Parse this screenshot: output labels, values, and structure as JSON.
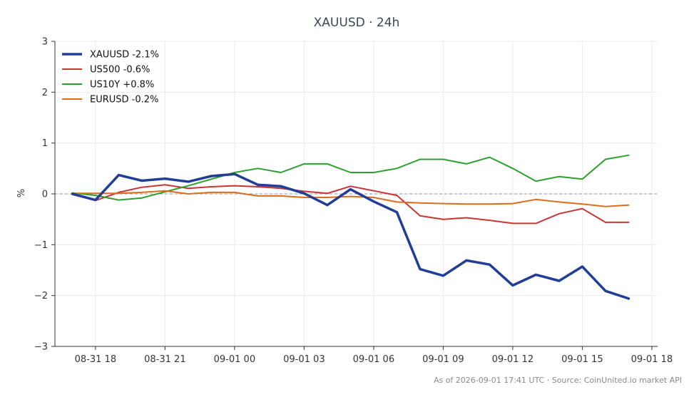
{
  "chart_data": {
    "type": "line",
    "title": "XAUUSD · 24h",
    "ylabel": "%",
    "xlabel": "",
    "ylim": [
      -3,
      3
    ],
    "xlim_hours": [
      16.25,
      42.25
    ],
    "x_ticks": [
      {
        "hour": 18,
        "label": "08-31 18"
      },
      {
        "hour": 21,
        "label": "08-31 21"
      },
      {
        "hour": 24,
        "label": "09-01 00"
      },
      {
        "hour": 27,
        "label": "09-01 03"
      },
      {
        "hour": 30,
        "label": "09-01 06"
      },
      {
        "hour": 33,
        "label": "09-01 09"
      },
      {
        "hour": 36,
        "label": "09-01 12"
      },
      {
        "hour": 39,
        "label": "09-01 15"
      },
      {
        "hour": 42,
        "label": "09-01 18"
      }
    ],
    "y_ticks": [
      {
        "value": 3,
        "label": "3"
      },
      {
        "value": 2,
        "label": "2"
      },
      {
        "value": 1,
        "label": "1"
      },
      {
        "value": 0,
        "label": "0"
      },
      {
        "value": -1,
        "label": "−1"
      },
      {
        "value": -2,
        "label": "−2"
      },
      {
        "value": -3,
        "label": "−3"
      }
    ],
    "grid": true,
    "zero_line": true,
    "legend_position": "top-left",
    "x": [
      17,
      18,
      19,
      20,
      21,
      22,
      23,
      24,
      25,
      26,
      27,
      28,
      29,
      30,
      31,
      32,
      33,
      34,
      35,
      36,
      37,
      38,
      39,
      40,
      41
    ],
    "series": [
      {
        "name": "XAUUSD -2.1%",
        "color": "#1f3d99",
        "width": 3.5,
        "values": [
          0.0,
          -0.12,
          0.37,
          0.26,
          0.3,
          0.24,
          0.35,
          0.39,
          0.18,
          0.15,
          0.01,
          -0.22,
          0.09,
          -0.15,
          -0.36,
          -1.48,
          -1.61,
          -1.31,
          -1.39,
          -1.8,
          -1.59,
          -1.71,
          -1.43,
          -1.91,
          -2.06
        ]
      },
      {
        "name": "US500 -0.6%",
        "color": "#cc3333",
        "width": 2,
        "values": [
          0.01,
          -0.13,
          0.03,
          0.13,
          0.18,
          0.11,
          0.14,
          0.16,
          0.14,
          0.11,
          0.05,
          0.01,
          0.15,
          0.06,
          -0.03,
          -0.43,
          -0.5,
          -0.47,
          -0.52,
          -0.58,
          -0.58,
          -0.39,
          -0.29,
          -0.56,
          -0.56
        ]
      },
      {
        "name": "US10Y +0.8%",
        "color": "#2ca02c",
        "width": 2,
        "values": [
          0.02,
          -0.03,
          -0.12,
          -0.08,
          0.04,
          0.16,
          0.29,
          0.42,
          0.5,
          0.42,
          0.59,
          0.59,
          0.42,
          0.42,
          0.5,
          0.68,
          0.68,
          0.59,
          0.72,
          0.5,
          0.25,
          0.34,
          0.29,
          0.68,
          0.76
        ]
      },
      {
        "name": "EURUSD -0.2%",
        "color": "#e06c1a",
        "width": 2,
        "values": [
          0.01,
          0.01,
          0.01,
          0.03,
          0.06,
          0.0,
          0.03,
          0.03,
          -0.04,
          -0.04,
          -0.07,
          -0.07,
          -0.05,
          -0.07,
          -0.16,
          -0.18,
          -0.19,
          -0.2,
          -0.2,
          -0.19,
          -0.11,
          -0.16,
          -0.2,
          -0.25,
          -0.22
        ]
      }
    ]
  },
  "footer": {
    "note": "As of 2026-09-01 17:41 UTC · Source: CoinUnited.io market API"
  }
}
